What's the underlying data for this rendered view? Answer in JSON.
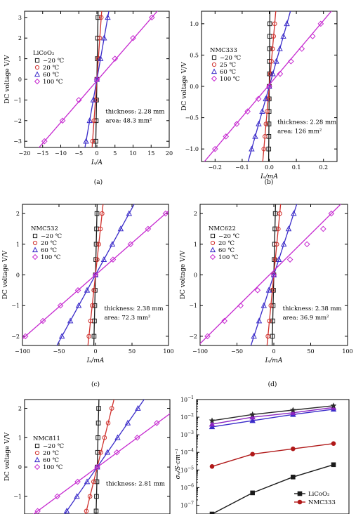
{
  "chart_data": [
    {
      "id": "a",
      "type": "scatter",
      "caption": "(a)",
      "legend_title": "LiCoO₂",
      "xlabel": "Iₛ/A",
      "ylabel": "DC voltage V/V",
      "xlim": [
        -20,
        20
      ],
      "ylim": [
        -3.3,
        3.3
      ],
      "xticks": [
        -20,
        -15,
        -10,
        -5,
        0,
        5,
        10,
        15,
        20
      ],
      "yticks": [
        -3,
        -2,
        -1,
        0,
        1,
        2,
        3
      ],
      "annotations": [
        "thickness: 2.28 mm",
        "area: 48.3 mm²"
      ],
      "y": [
        -3,
        -2,
        -1,
        0,
        1,
        2,
        3
      ],
      "series": [
        {
          "name": "−20 ℃",
          "marker": "square",
          "color": "#1a1a1a",
          "x": [
            -0.3,
            -0.2,
            -0.1,
            0,
            0.1,
            0.2,
            0.3
          ]
        },
        {
          "name": "20 ℃",
          "marker": "circle",
          "color": "#d0312d",
          "x": [
            -1.2,
            -0.8,
            -0.4,
            0,
            0.4,
            0.8,
            1.2
          ]
        },
        {
          "name": "60 ℃",
          "marker": "triangle",
          "color": "#3a2bc9",
          "x": [
            -3,
            -2,
            -1,
            0,
            1,
            2,
            3
          ]
        },
        {
          "name": "100 ℃",
          "marker": "diamond",
          "color": "#c62ad0",
          "x": [
            -14.5,
            -9.5,
            -5,
            0,
            5,
            10,
            15.2
          ]
        }
      ]
    },
    {
      "id": "b",
      "type": "scatter",
      "caption": "(b)",
      "legend_title": "NMC333",
      "xlabel": "Iₛ/mA",
      "ylabel": "DC voltage V/V",
      "xlim": [
        -0.25,
        0.25
      ],
      "ylim": [
        -1.2,
        1.2
      ],
      "xticks": [
        -0.2,
        -0.1,
        0.0,
        0.1,
        0.2
      ],
      "yticks": [
        -1.0,
        -0.5,
        0.0,
        0.5,
        1.0
      ],
      "annotations": [
        "thickness: 2.28 mm",
        "area: 126 mm²"
      ],
      "y": [
        -1,
        -0.8,
        -0.6,
        -0.4,
        -0.2,
        0,
        0.2,
        0.4,
        0.6,
        0.8,
        1
      ],
      "series": [
        {
          "name": "−20 ℃",
          "marker": "square",
          "color": "#1a1a1a",
          "x": [
            -0.002,
            -0.0016,
            -0.0012,
            -0.0008,
            -0.0004,
            0,
            0.0004,
            0.0008,
            0.0012,
            0.0016,
            0.002
          ]
        },
        {
          "name": "25 ℃",
          "marker": "circle",
          "color": "#d0312d",
          "x": [
            -0.02,
            -0.016,
            -0.012,
            -0.008,
            -0.004,
            0,
            0.004,
            0.008,
            0.012,
            0.016,
            0.02
          ]
        },
        {
          "name": "60 ℃",
          "marker": "triangle",
          "color": "#3a2bc9",
          "x": [
            -0.065,
            -0.052,
            -0.039,
            -0.026,
            -0.013,
            0,
            0.013,
            0.026,
            0.039,
            0.052,
            0.065
          ]
        },
        {
          "name": "100 ℃",
          "marker": "diamond",
          "color": "#c62ad0",
          "x": [
            -0.2,
            -0.16,
            -0.12,
            -0.08,
            -0.04,
            0,
            0.04,
            0.08,
            0.12,
            0.16,
            0.19
          ]
        }
      ]
    },
    {
      "id": "c",
      "type": "scatter",
      "caption": "(c)",
      "legend_title": "NMC532",
      "xlabel": "Iₛ/mA",
      "ylabel": "DC voltage V/V",
      "xlim": [
        -100,
        100
      ],
      "ylim": [
        -2.3,
        2.3
      ],
      "xticks": [
        -100,
        -50,
        0,
        50,
        100
      ],
      "yticks": [
        -2,
        -1,
        0,
        1,
        2
      ],
      "annotations": [
        "thickness: 2.38 mm",
        "area: 72.3 mm²"
      ],
      "y": [
        -2,
        -1.5,
        -1,
        -0.5,
        0,
        0.5,
        1,
        1.5,
        2
      ],
      "series": [
        {
          "name": "−20 ℃",
          "marker": "square",
          "color": "#1a1a1a",
          "x": [
            -2,
            -1.5,
            -1,
            -0.5,
            0,
            0.5,
            1,
            1.5,
            2
          ]
        },
        {
          "name": "20 ℃",
          "marker": "circle",
          "color": "#d0312d",
          "x": [
            -9,
            -6.8,
            -4.5,
            -2.3,
            0,
            2.3,
            4.5,
            6.8,
            9
          ]
        },
        {
          "name": "60 ℃",
          "marker": "triangle",
          "color": "#3a2bc9",
          "x": [
            -46,
            -34.5,
            -23,
            -11.5,
            0,
            11.5,
            23,
            34.5,
            46
          ]
        },
        {
          "name": "100 ℃",
          "marker": "diamond",
          "color": "#c62ad0",
          "x": [
            -96,
            -72,
            -48,
            -24,
            0,
            24,
            48,
            72,
            96
          ]
        }
      ]
    },
    {
      "id": "d",
      "type": "scatter",
      "caption": "(d)",
      "legend_title": "NMC622",
      "xlabel": "Iₛ/mA",
      "ylabel": "DC voltage V/V",
      "xlim": [
        -100,
        100
      ],
      "ylim": [
        -2.3,
        2.3
      ],
      "xticks": [
        -100,
        -50,
        0,
        50,
        100
      ],
      "yticks": [
        -2,
        -1,
        0,
        1,
        2
      ],
      "annotations": [
        "thickness: 2.38 mm",
        "area: 36.9 mm²"
      ],
      "y": [
        -2,
        -1.5,
        -1,
        -0.5,
        0,
        0.5,
        1,
        1.5,
        2
      ],
      "series": [
        {
          "name": "−20 ℃",
          "marker": "square",
          "color": "#1a1a1a",
          "x": [
            -2,
            -1.5,
            -1,
            -0.5,
            0,
            0.5,
            1,
            1.5,
            2
          ]
        },
        {
          "name": "20 ℃",
          "marker": "circle",
          "color": "#d0312d",
          "x": [
            -8,
            -6,
            -4,
            -2,
            0,
            2,
            4,
            6,
            8
          ]
        },
        {
          "name": "60 ℃",
          "marker": "triangle",
          "color": "#3a2bc9",
          "x": [
            -27,
            -20,
            -13.5,
            -6.8,
            0,
            6.8,
            13.5,
            20,
            27
          ]
        },
        {
          "name": "100 ℃",
          "marker": "diamond",
          "color": "#c62ad0",
          "x": [
            -90,
            -67,
            -45,
            -22,
            0,
            22,
            45,
            67,
            78
          ]
        }
      ]
    },
    {
      "id": "e",
      "type": "scatter",
      "legend_title": "NMC811",
      "ylabel": "DC voltage V/V",
      "xlim": [
        -100,
        100
      ],
      "ylim": [
        -1.6,
        2.3
      ],
      "yticks": [
        -1,
        0,
        1,
        2
      ],
      "annotations": [
        "thickness: 2.81 mm"
      ],
      "y": [
        -1.5,
        -1,
        -0.5,
        0,
        0.5,
        1,
        1.5,
        2
      ],
      "series": [
        {
          "name": "−20 ℃",
          "marker": "square",
          "color": "#1a1a1a",
          "x": [
            -1.5,
            -1,
            -0.5,
            0,
            0.5,
            1,
            1.5,
            2
          ]
        },
        {
          "name": "20 ℃",
          "marker": "circle",
          "color": "#d0312d",
          "x": [
            -15,
            -10,
            -5,
            0,
            5,
            10,
            15,
            20
          ]
        },
        {
          "name": "60 ℃",
          "marker": "triangle",
          "color": "#3a2bc9",
          "x": [
            -42,
            -28,
            -14,
            0,
            14,
            28,
            42,
            56
          ]
        },
        {
          "name": "100 ℃",
          "marker": "diamond",
          "color": "#c62ad0",
          "x": [
            -82,
            -55,
            -27,
            0,
            27,
            55,
            82,
            110
          ]
        }
      ]
    },
    {
      "id": "f",
      "type": "line",
      "ylabel": "σₑ/S·cm⁻¹",
      "ylog": true,
      "ylim": [
        -7.5,
        -1
      ],
      "ytick_exponents": [
        -7,
        -6,
        -5,
        -4,
        -3,
        -2,
        -1
      ],
      "ytick_prefix": "10",
      "x": [
        1,
        2,
        3,
        4
      ],
      "series": [
        {
          "name": "LiCoO₂",
          "marker": "square",
          "color": "#1a1a1a",
          "log10_values": [
            -7.5,
            -6.3,
            -5.4,
            -4.7
          ]
        },
        {
          "name": "NMC333",
          "marker": "circle",
          "color": "#b01818",
          "log10_values": [
            -4.8,
            -4.1,
            -3.8,
            -3.5
          ]
        },
        {
          "name": "",
          "marker": "triangle",
          "color": "#3a2bc9",
          "log10_values": [
            -2.55,
            -2.2,
            -1.85,
            -1.55
          ]
        },
        {
          "name": "",
          "marker": "triangle",
          "color": "#8a24c0",
          "log10_values": [
            -2.4,
            -2.0,
            -1.75,
            -1.45
          ]
        },
        {
          "name": "",
          "marker": "star",
          "color": "#2a2a2a",
          "log10_values": [
            -2.2,
            -1.85,
            -1.6,
            -1.35
          ]
        }
      ]
    }
  ]
}
